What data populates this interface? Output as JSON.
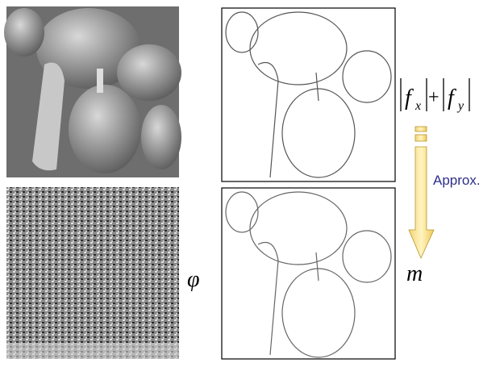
{
  "formula": {
    "term1": {
      "base": "f",
      "sub": "x"
    },
    "operator": "+",
    "term2": {
      "base": "f",
      "sub": "y"
    }
  },
  "arrow_label": "Approx.",
  "phase_symbol": "φ",
  "magnitude_symbol": "m"
}
